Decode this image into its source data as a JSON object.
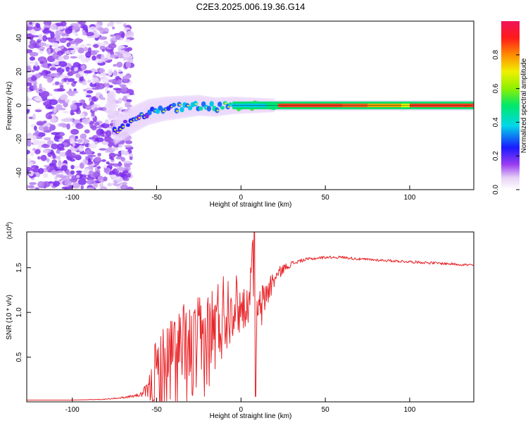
{
  "figure": {
    "title": "C2E3.2025.006.19.36.G14"
  },
  "colors": {
    "series_line": "#e8262a",
    "spec_ridge": "#000000",
    "background": "#ffffff"
  },
  "colorbar": {
    "label": "Normalized spectral amplitude",
    "ticks": [
      "0.0",
      "0.2",
      "0.4",
      "0.6",
      "0.8"
    ],
    "tick_values": [
      0.0,
      0.2,
      0.4,
      0.6,
      0.8
    ],
    "range": [
      0,
      1
    ],
    "colormap": "rainbow-white"
  },
  "chart_data": [
    {
      "type": "heatmap",
      "xlabel": "Height of straight line (km)",
      "ylabel": "Frequency (Hz)",
      "xlim": [
        -127,
        138
      ],
      "ylim": [
        -50,
        50
      ],
      "xticks": [
        -100,
        -50,
        0,
        50,
        100
      ],
      "yticks": [
        -40,
        -20,
        0,
        20,
        40
      ],
      "grid": false,
      "dominant_frequency_track": {
        "x": [
          -75,
          -65,
          -55,
          -45,
          -35,
          -25,
          -15,
          -5,
          0,
          10,
          20,
          40,
          60,
          80,
          100,
          120,
          138
        ],
        "y": [
          -15,
          -9,
          -4,
          -2,
          -1,
          0,
          -1,
          0,
          0,
          0,
          0,
          0,
          0,
          0,
          0,
          0,
          0
        ]
      }
    },
    {
      "type": "line",
      "xlabel": "Height of straight line (km)",
      "ylabel": "SNR (10 * v/v)",
      "y_multiplier": "(x10^4)",
      "xlim": [
        -127,
        138
      ],
      "ylim": [
        0,
        1.9
      ],
      "xticks": [
        -100,
        -50,
        0,
        50,
        100
      ],
      "yticks": [
        0.5,
        1.0,
        1.5
      ],
      "ytick_labels": [
        "0.5",
        "1.0",
        "1.5"
      ],
      "grid": false,
      "series": [
        {
          "x": [
            -127,
            -100,
            -80,
            -70,
            -60,
            -55,
            -50,
            -45,
            -40,
            -35,
            -30,
            -25,
            -20,
            -15,
            -10,
            -5,
            0,
            5,
            7,
            8,
            9,
            10,
            15,
            20,
            25,
            30,
            35,
            40,
            50,
            60,
            70,
            80,
            90,
            100,
            110,
            120,
            130,
            138
          ],
          "values": [
            0.02,
            0.02,
            0.03,
            0.05,
            0.08,
            0.15,
            0.35,
            0.45,
            0.6,
            0.65,
            0.62,
            0.7,
            0.8,
            0.95,
            1.1,
            1.2,
            1.1,
            1.15,
            1.9,
            0.1,
            0.9,
            1.0,
            1.25,
            1.4,
            1.5,
            1.55,
            1.58,
            1.6,
            1.62,
            1.62,
            1.6,
            1.59,
            1.58,
            1.57,
            1.56,
            1.55,
            1.54,
            1.53
          ],
          "noise": [
            0,
            0,
            0.005,
            0.01,
            0.02,
            0.1,
            0.55,
            0.55,
            0.6,
            0.6,
            0.6,
            0.6,
            0.6,
            0.55,
            0.5,
            0.4,
            0.3,
            0.2,
            0,
            0,
            0.3,
            0.3,
            0.2,
            0.1,
            0.05,
            0.03,
            0.02,
            0.02,
            0.015,
            0.015,
            0.015,
            0.015,
            0.015,
            0.015,
            0.015,
            0.015,
            0.015,
            0.015
          ]
        }
      ]
    }
  ]
}
